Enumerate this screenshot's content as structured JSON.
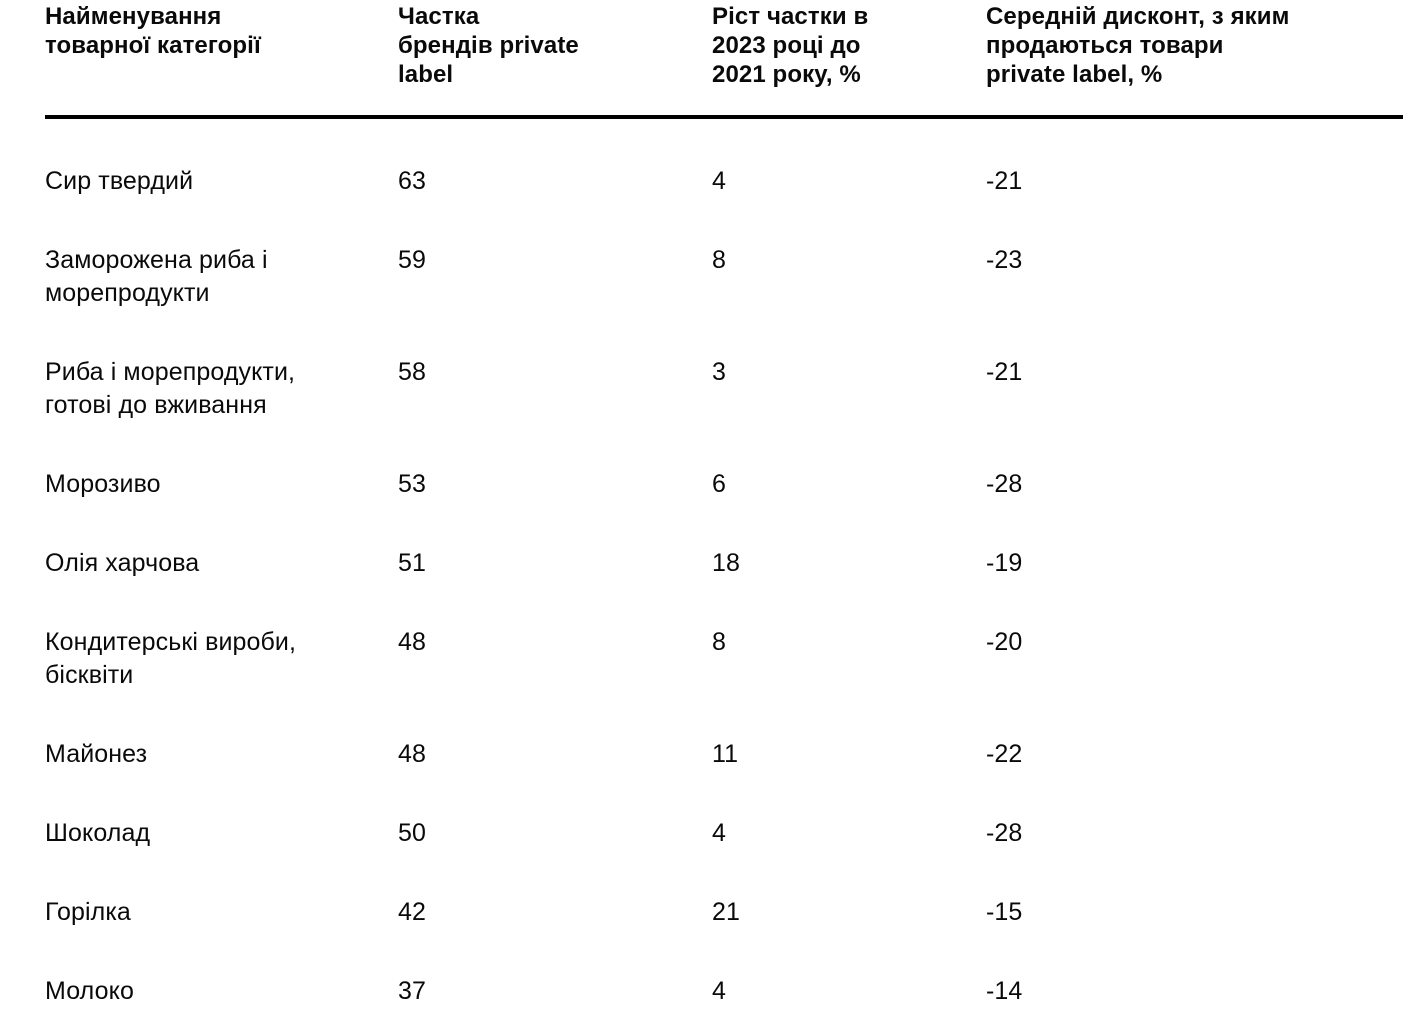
{
  "page": {
    "background_color": "#ffffff",
    "text_color": "#0a0a0a",
    "rule_color": "#000000"
  },
  "header": {
    "category_lines": [
      "Найменування",
      "товарної категорії"
    ],
    "share_lines": [
      "Частка",
      "брендів private",
      "label"
    ],
    "growth_lines": [
      "Ріст частки в",
      "2023 році до",
      "2021 року, %"
    ],
    "discount_lines": [
      "Середній дисконт, з яким",
      "продаються товари",
      "private label, %"
    ]
  },
  "chart_data": {
    "type": "table",
    "columns": [
      "Найменування товарної категорії",
      "Частка брендів private label",
      "Ріст частки в 2023 році до 2021 року, %",
      "Середній дисконт, з яким продаються товари private label, %"
    ],
    "rows": [
      [
        "Сир твердий",
        63,
        4,
        -21
      ],
      [
        "Заморожена риба і морепродукти",
        59,
        8,
        -23
      ],
      [
        "Риба і морепродукти, готові до вживання",
        58,
        3,
        -21
      ],
      [
        "Морозиво",
        53,
        6,
        -28
      ],
      [
        "Олія харчова",
        51,
        18,
        -19
      ],
      [
        "Кондитерські вироби, бісквіти",
        48,
        8,
        -20
      ],
      [
        "Майонез",
        48,
        11,
        -22
      ],
      [
        "Шоколад",
        50,
        4,
        -28
      ],
      [
        "Горілка",
        42,
        21,
        -15
      ],
      [
        "Молоко",
        37,
        4,
        -14
      ]
    ]
  }
}
